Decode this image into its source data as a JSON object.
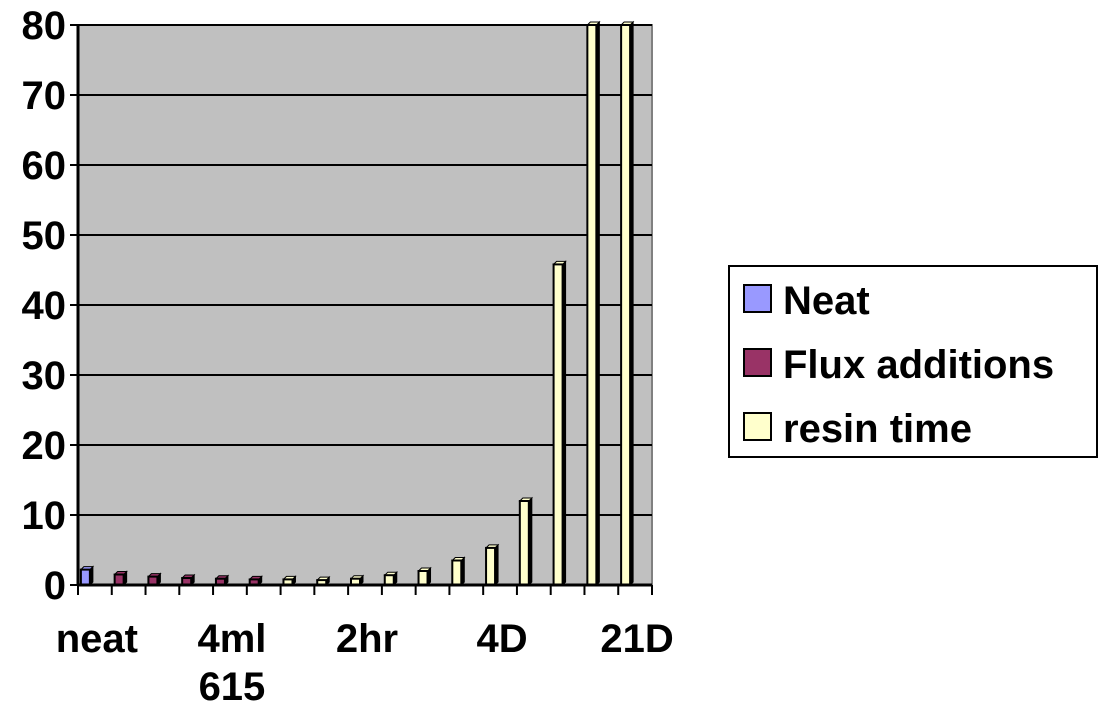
{
  "chart_data": {
    "type": "bar",
    "title": "",
    "xlabel": "",
    "ylabel": "",
    "ylim": [
      0,
      80
    ],
    "yticks": [
      "0",
      "10",
      "20",
      "30",
      "40",
      "50",
      "60",
      "70",
      "80"
    ],
    "x_tick_labels": [
      {
        "index": 0,
        "lines": [
          "neat"
        ]
      },
      {
        "index": 4,
        "lines": [
          "4ml",
          "615"
        ]
      },
      {
        "index": 8,
        "lines": [
          "2hr"
        ]
      },
      {
        "index": 12,
        "lines": [
          "4D"
        ]
      },
      {
        "index": 16,
        "lines": [
          "21D"
        ]
      }
    ],
    "grid": true,
    "legend_position": "right",
    "background_color": "#c0c0c0",
    "series": [
      {
        "name": "Neat",
        "color": "#9999ff",
        "indices": [
          0
        ],
        "values": [
          2.2
        ]
      },
      {
        "name": "Flux additions",
        "color": "#993366",
        "indices": [
          1,
          2,
          3,
          4,
          5
        ],
        "values": [
          1.5,
          1.2,
          1.0,
          0.9,
          0.8
        ]
      },
      {
        "name": "resin time",
        "color": "#ffffcc",
        "indices": [
          6,
          7,
          8,
          9,
          10,
          11,
          12,
          13,
          14,
          15,
          16
        ],
        "values": [
          0.8,
          0.7,
          0.9,
          1.4,
          2.0,
          3.5,
          5.3,
          12.0,
          45.8,
          80.0,
          80.0
        ]
      }
    ]
  }
}
